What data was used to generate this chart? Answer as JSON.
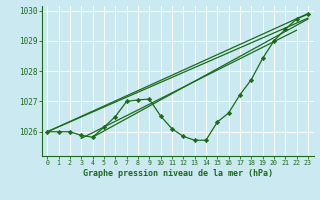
{
  "background_color": "#cbe9f0",
  "grid_color": "#ffffff",
  "line_color": "#1a6b1a",
  "marker_color": "#1a6b1a",
  "xlabel": "Graphe pression niveau de la mer (hPa)",
  "xlabel_color": "#1a6b1a",
  "tick_color": "#1a6b1a",
  "xlim": [
    -0.5,
    23.5
  ],
  "ylim": [
    1025.2,
    1030.15
  ],
  "yticks": [
    1026,
    1027,
    1028,
    1029,
    1030
  ],
  "xticks": [
    0,
    1,
    2,
    3,
    4,
    5,
    6,
    7,
    8,
    9,
    10,
    11,
    12,
    13,
    14,
    15,
    16,
    17,
    18,
    19,
    20,
    21,
    22,
    23
  ],
  "straight_lines": [
    {
      "x": [
        0,
        23
      ],
      "y": [
        1026.0,
        1029.9
      ]
    },
    {
      "x": [
        0,
        23
      ],
      "y": [
        1026.0,
        1029.75
      ]
    },
    {
      "x": [
        3,
        22
      ],
      "y": [
        1025.78,
        1029.35
      ]
    },
    {
      "x": [
        4,
        23
      ],
      "y": [
        1025.82,
        1029.72
      ]
    }
  ],
  "curve_x": [
    0,
    1,
    2,
    3,
    4,
    5,
    6,
    7,
    8,
    9,
    10,
    11,
    12,
    13,
    14,
    15,
    16,
    17,
    18,
    19,
    20,
    21,
    22,
    23
  ],
  "curve_y": [
    1026.0,
    1026.0,
    1026.0,
    1025.88,
    1025.82,
    1026.15,
    1026.5,
    1027.0,
    1027.05,
    1027.08,
    1026.52,
    1026.1,
    1025.85,
    1025.72,
    1025.72,
    1026.32,
    1026.62,
    1027.22,
    1027.72,
    1028.42,
    1029.0,
    1029.38,
    1029.72,
    1029.88
  ]
}
